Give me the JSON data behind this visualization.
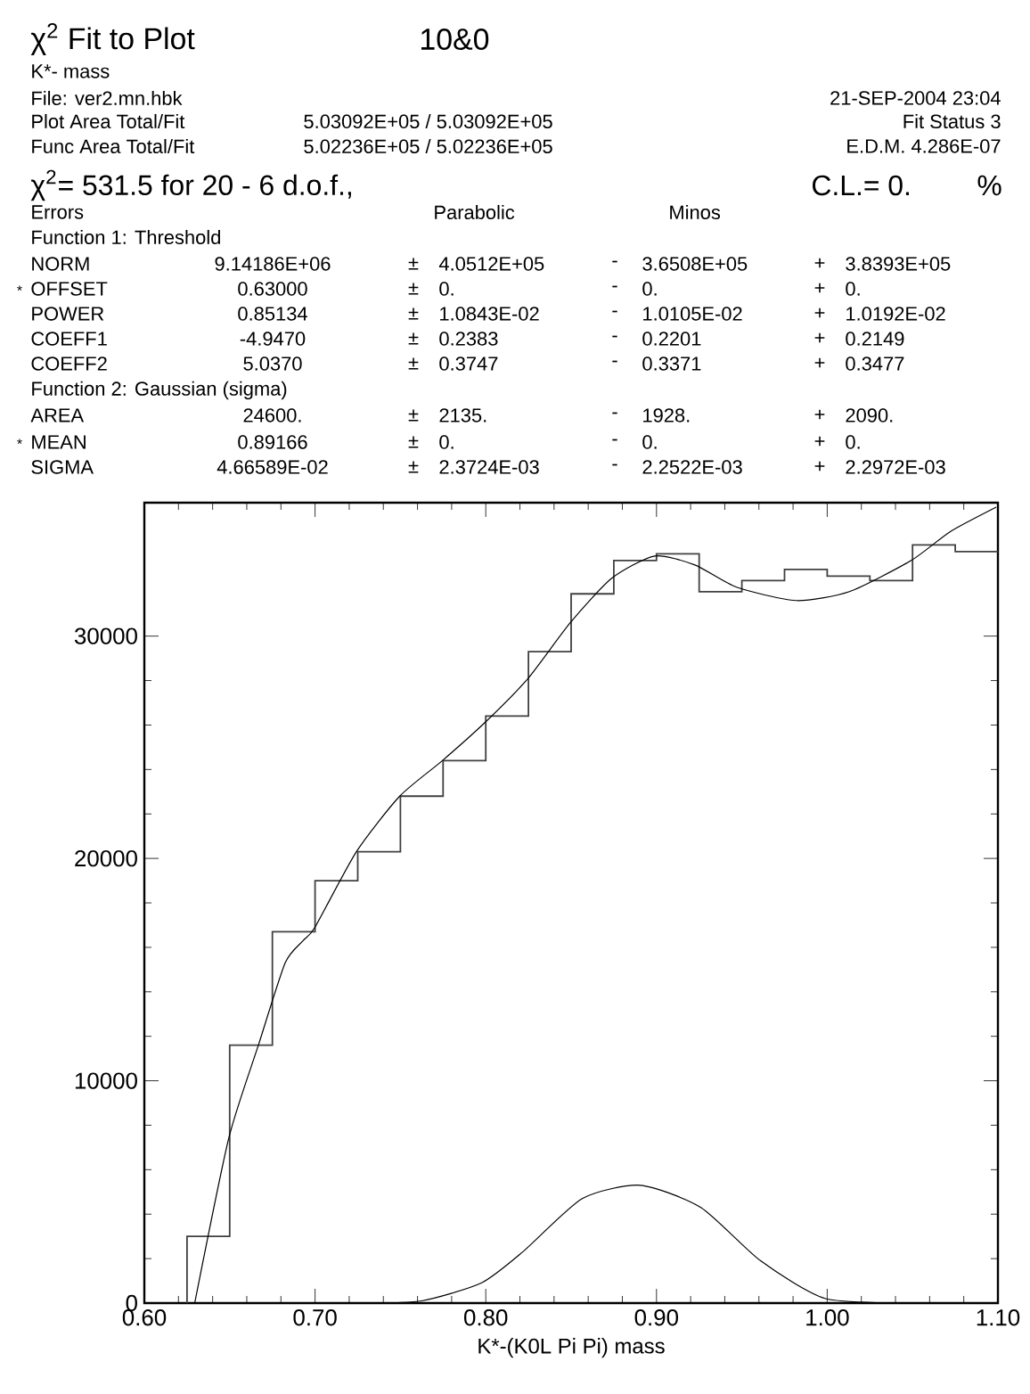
{
  "chart_data": {
    "type": "histogram",
    "title": "χ$^{2}$ Fit to Plot",
    "subtitle": "K*- mass",
    "xlabel": "K*-(K0L Pi Pi) mass",
    "annotations": [
      "10&0",
      "File: ver2.mn.hbk",
      "21-SEP-2004 23:04",
      "Plot Area Total/Fit",
      "5.03092E+05 / 5.03092E+05",
      "Fit Status  3",
      "Func Area Total/Fit",
      "5.02236E+05 / 5.02236E+05",
      "E.D.M. 4.286E-07",
      "χ$^{2}$=   531.5 for  20 -  6 d.o.f.,",
      "C.L.=  0.",
      "%",
      "Errors",
      "Parabolic",
      "Minos",
      "Function  1: Threshold",
      "NORM",
      "9.14186E+06",
      "±",
      "4.0512E+05",
      "-",
      "3.6508E+05",
      "+",
      "3.8393E+05",
      "OFFSET",
      "0.63000",
      "±",
      "0.",
      "-",
      "0.",
      "+",
      "0.",
      "POWER",
      "0.85134",
      "±",
      "1.0843E-02",
      "-",
      "1.0105E-02",
      "+",
      "1.0192E-02",
      "COEFF1",
      "-4.9470",
      "±",
      "0.2383",
      "-",
      "0.2201",
      "+",
      "0.2149",
      "COEFF2",
      "5.0370",
      "±",
      "0.3747",
      "-",
      "0.3371",
      "+",
      "0.3477",
      "Function  2: Gaussian (sigma)",
      "AREA",
      "24600.",
      "±",
      "2135.",
      "-",
      "1928.",
      "+",
      "2090.",
      "MEAN",
      "0.89166",
      "±",
      "0.",
      "-",
      "0.",
      "+",
      "0.",
      "SIGMA",
      "4.66589E-02",
      "±",
      "2.3724E-03",
      "-",
      "2.2522E-03",
      "+",
      "2.2972E-03",
      "*",
      "*"
    ],
    "xlim": [
      0.6,
      1.1
    ],
    "ylim": [
      0,
      36000
    ],
    "xticks": [
      {
        "value": 0.6,
        "label": "0.60"
      },
      {
        "value": 0.7,
        "label": "0.70"
      },
      {
        "value": 0.8,
        "label": "0.80"
      },
      {
        "value": 0.9,
        "label": "0.90"
      },
      {
        "value": 1.0,
        "label": "1.00"
      },
      {
        "value": 1.1,
        "label": "1.10"
      }
    ],
    "yticks": [
      0,
      10000,
      20000,
      30000
    ],
    "series": [
      {
        "color": "#404040",
        "bins": [
          0.625,
          0.65,
          0.675,
          0.7,
          0.725,
          0.75,
          0.775,
          0.8,
          0.825,
          0.85,
          0.875,
          0.9,
          0.925,
          0.95,
          0.975,
          1.0,
          1.025,
          1.05,
          1.075,
          1.1
        ],
        "values": [
          3000,
          11600,
          16700,
          19000,
          20300,
          22800,
          24400,
          26400,
          29300,
          31900,
          33400,
          33700,
          32000,
          32500,
          33000,
          32700,
          32500,
          34100,
          33800
        ]
      },
      {
        "type": "line",
        "color": "#000000",
        "x": [
          0.6295,
          0.6494,
          0.6668,
          0.6825,
          0.693,
          0.6999,
          0.7242,
          0.7496,
          0.7746,
          0.8007,
          0.8248,
          0.8495,
          0.8738,
          0.8989,
          0.9225,
          0.9469,
          0.9817,
          1.013,
          1.0492,
          1.0721,
          1.099
        ],
        "values": [
          0,
          7400,
          11600,
          15300,
          16300,
          16900,
          20300,
          22800,
          24400,
          26200,
          28100,
          30600,
          32600,
          33600,
          33200,
          32200,
          31600,
          32000,
          33400,
          34700,
          35800
        ]
      },
      {
        "type": "line",
        "color": "#000000",
        "x": [
          0.7302,
          0.7625,
          0.7973,
          0.8216,
          0.8565,
          0.8905,
          0.926,
          0.961,
          0.999,
          1.051
        ],
        "values": [
          0,
          100,
          900,
          2300,
          4700,
          5300,
          4300,
          1900,
          200,
          0
        ]
      }
    ]
  }
}
